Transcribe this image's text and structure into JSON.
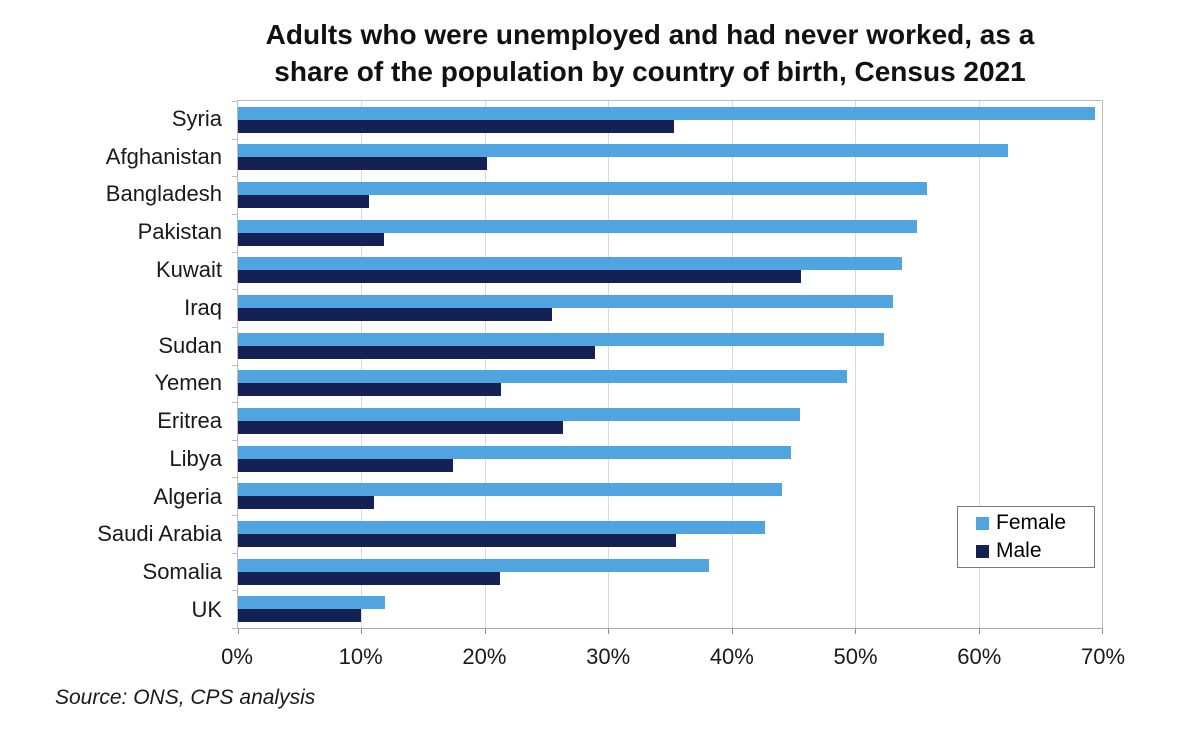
{
  "title": {
    "line1": "Adults who were unemployed and had never worked, as a",
    "line2": "share of the population by country of birth, Census 2021"
  },
  "source": "Source: ONS, CPS analysis",
  "colors": {
    "female_bar": "#50A5E1",
    "male_bar": "#132155",
    "gridline": "#d9d9d9",
    "plot_border": "#bdbdbd",
    "background": "#ffffff"
  },
  "chart_data": {
    "type": "bar",
    "orientation": "horizontal",
    "title": "Adults who were unemployed and had never worked, as a share of the population by country of birth, Census 2021",
    "categories": [
      "Syria",
      "Afghanistan",
      "Bangladesh",
      "Pakistan",
      "Kuwait",
      "Iraq",
      "Sudan",
      "Yemen",
      "Eritrea",
      "Libya",
      "Algeria",
      "Saudi Arabia",
      "Somalia",
      "UK"
    ],
    "series": [
      {
        "name": "Female",
        "color": "#50A5E1",
        "values": [
          69.4,
          62.4,
          55.8,
          55.0,
          53.8,
          53.1,
          52.3,
          49.3,
          45.5,
          44.8,
          44.1,
          42.7,
          38.2,
          11.9
        ]
      },
      {
        "name": "Male",
        "color": "#132155",
        "values": [
          35.3,
          20.2,
          10.6,
          11.8,
          45.6,
          25.4,
          28.9,
          21.3,
          26.3,
          17.4,
          11.0,
          35.5,
          21.2,
          10.0
        ]
      }
    ],
    "x_axis": {
      "min": 0,
      "max": 70,
      "tick_step": 10,
      "ticks": [
        "0%",
        "10%",
        "20%",
        "30%",
        "40%",
        "50%",
        "60%",
        "70%"
      ]
    },
    "grid": true,
    "legend_position": "right-middle"
  }
}
